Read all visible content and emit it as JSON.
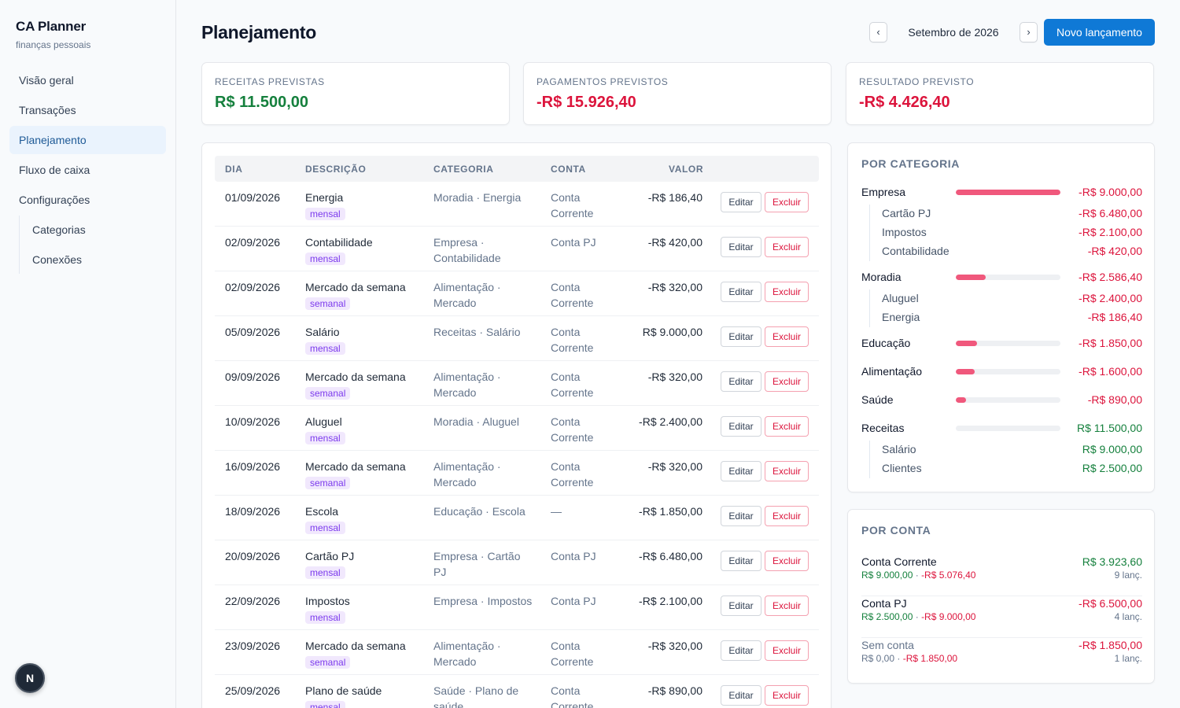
{
  "brand": {
    "title": "CA Planner",
    "subtitle": "finanças pessoais"
  },
  "sidebar": {
    "items": [
      "Visão geral",
      "Transações",
      "Planejamento",
      "Fluxo de caixa",
      "Configurações"
    ],
    "subitems": [
      "Categorias",
      "Conexões"
    ],
    "active": "Planejamento"
  },
  "badge": "N",
  "header": {
    "title": "Planejamento",
    "month": "Setembro de 2026",
    "prev": "‹",
    "next": "›",
    "new_button": "Novo lançamento"
  },
  "summary": [
    {
      "label": "RECEITAS PREVISTAS",
      "value": "R$ 11.500,00",
      "tone": "green"
    },
    {
      "label": "PAGAMENTOS PREVISTOS",
      "value": "-R$ 15.926,40",
      "tone": "red"
    },
    {
      "label": "RESULTADO PREVISTO",
      "value": "-R$ 4.426,40",
      "tone": "red"
    }
  ],
  "table": {
    "headers": {
      "dia": "DIA",
      "descricao": "DESCRIÇÃO",
      "categoria": "CATEGORIA",
      "conta": "CONTA",
      "valor": "VALOR"
    },
    "edit_label": "Editar",
    "delete_label": "Excluir",
    "rows": [
      {
        "dia": "01/09/2026",
        "desc": "Energia",
        "freq": "mensal",
        "cat": "Moradia · Energia",
        "conta": "Conta Corrente",
        "valor": "-R$ 186,40",
        "tone": "red"
      },
      {
        "dia": "02/09/2026",
        "desc": "Contabilidade",
        "freq": "mensal",
        "cat": "Empresa · Contabilidade",
        "conta": "Conta PJ",
        "valor": "-R$ 420,00",
        "tone": "red"
      },
      {
        "dia": "02/09/2026",
        "desc": "Mercado da semana",
        "freq": "semanal",
        "cat": "Alimentação · Mercado",
        "conta": "Conta Corrente",
        "valor": "-R$ 320,00",
        "tone": "red"
      },
      {
        "dia": "05/09/2026",
        "desc": "Salário",
        "freq": "mensal",
        "cat": "Receitas · Salário",
        "conta": "Conta Corrente",
        "valor": "R$ 9.000,00",
        "tone": "green"
      },
      {
        "dia": "09/09/2026",
        "desc": "Mercado da semana",
        "freq": "semanal",
        "cat": "Alimentação · Mercado",
        "conta": "Conta Corrente",
        "valor": "-R$ 320,00",
        "tone": "red"
      },
      {
        "dia": "10/09/2026",
        "desc": "Aluguel",
        "freq": "mensal",
        "cat": "Moradia · Aluguel",
        "conta": "Conta Corrente",
        "valor": "-R$ 2.400,00",
        "tone": "red"
      },
      {
        "dia": "16/09/2026",
        "desc": "Mercado da semana",
        "freq": "semanal",
        "cat": "Alimentação · Mercado",
        "conta": "Conta Corrente",
        "valor": "-R$ 320,00",
        "tone": "red"
      },
      {
        "dia": "18/09/2026",
        "desc": "Escola",
        "freq": "mensal",
        "cat": "Educação · Escola",
        "conta": "—",
        "valor": "-R$ 1.850,00",
        "tone": "red"
      },
      {
        "dia": "20/09/2026",
        "desc": "Cartão PJ",
        "freq": "mensal",
        "cat": "Empresa · Cartão PJ",
        "conta": "Conta PJ",
        "valor": "-R$ 6.480,00",
        "tone": "red"
      },
      {
        "dia": "22/09/2026",
        "desc": "Impostos",
        "freq": "mensal",
        "cat": "Empresa · Impostos",
        "conta": "Conta PJ",
        "valor": "-R$ 2.100,00",
        "tone": "red"
      },
      {
        "dia": "23/09/2026",
        "desc": "Mercado da semana",
        "freq": "semanal",
        "cat": "Alimentação · Mercado",
        "conta": "Conta Corrente",
        "valor": "-R$ 320,00",
        "tone": "red"
      },
      {
        "dia": "25/09/2026",
        "desc": "Plano de saúde",
        "freq": "mensal",
        "cat": "Saúde · Plano de saúde",
        "conta": "Conta Corrente",
        "valor": "-R$ 890,00",
        "tone": "red"
      }
    ]
  },
  "por_categoria": {
    "title": "POR CATEGORIA",
    "groups": [
      {
        "name": "Empresa",
        "value": "-R$ 9.000,00",
        "tone": "red",
        "share": 1.0,
        "subs": [
          {
            "name": "Cartão PJ",
            "value": "-R$ 6.480,00",
            "tone": "red"
          },
          {
            "name": "Impostos",
            "value": "-R$ 2.100,00",
            "tone": "red"
          },
          {
            "name": "Contabilidade",
            "value": "-R$ 420,00",
            "tone": "red"
          }
        ]
      },
      {
        "name": "Moradia",
        "value": "-R$ 2.586,40",
        "tone": "red",
        "share": 0.287,
        "subs": [
          {
            "name": "Aluguel",
            "value": "-R$ 2.400,00",
            "tone": "red"
          },
          {
            "name": "Energia",
            "value": "-R$ 186,40",
            "tone": "red"
          }
        ]
      },
      {
        "name": "Educação",
        "value": "-R$ 1.850,00",
        "tone": "red",
        "share": 0.206,
        "subs": []
      },
      {
        "name": "Alimentação",
        "value": "-R$ 1.600,00",
        "tone": "red",
        "share": 0.178,
        "subs": []
      },
      {
        "name": "Saúde",
        "value": "-R$ 890,00",
        "tone": "red",
        "share": 0.099,
        "subs": []
      },
      {
        "name": "Receitas",
        "value": "R$ 11.500,00",
        "tone": "green",
        "share": 0,
        "subs": [
          {
            "name": "Salário",
            "value": "R$ 9.000,00",
            "tone": "green"
          },
          {
            "name": "Clientes",
            "value": "R$ 2.500,00",
            "tone": "green"
          }
        ]
      }
    ]
  },
  "por_conta": {
    "title": "POR CONTA",
    "accounts": [
      {
        "name": "Conta Corrente",
        "total": "R$ 3.923,60",
        "tone": "green",
        "in": "R$ 9.000,00",
        "out": "-R$ 5.076,40",
        "count": "9 lanç.",
        "muted": false
      },
      {
        "name": "Conta PJ",
        "total": "-R$ 6.500,00",
        "tone": "red",
        "in": "R$ 2.500,00",
        "out": "-R$ 9.000,00",
        "count": "4 lanç.",
        "muted": false
      },
      {
        "name": "Sem conta",
        "total": "-R$ 1.850,00",
        "tone": "red",
        "in": "R$ 0,00",
        "out": "-R$ 1.850,00",
        "count": "1 lanç.",
        "muted": true
      }
    ]
  },
  "colors": {
    "accent": "#0f79d6",
    "positive": "#15803d",
    "negative": "#dc143c",
    "bar": "#f0587c",
    "tag_bg": "#f1e8fd",
    "tag_fg": "#7c3aed"
  }
}
